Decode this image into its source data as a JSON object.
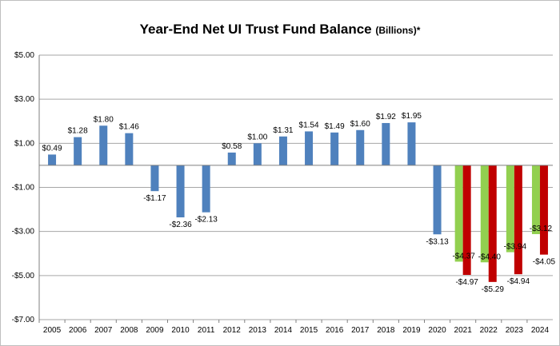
{
  "chart_data": {
    "type": "bar",
    "title": "Year-End Net UI Trust Fund Balance",
    "title_unit": "(Billions)*",
    "xlabel": "",
    "ylabel": "",
    "ylim": [
      -7,
      5
    ],
    "y_ticks": [
      5,
      3,
      1,
      -1,
      -3,
      -5,
      -7
    ],
    "y_tick_labels": [
      "$5.00",
      "$3.00",
      "$1.00",
      "-$1.00",
      "-$3.00",
      "-$5.00",
      "-$7.00"
    ],
    "grid": true,
    "legend": "none",
    "categories": [
      "2005",
      "2006",
      "2007",
      "2008",
      "2009",
      "2010",
      "2011",
      "2012",
      "2013",
      "2014",
      "2015",
      "2016",
      "2017",
      "2018",
      "2019",
      "2020",
      "2021",
      "2022",
      "2023",
      "2024"
    ],
    "series": [
      {
        "color": "#4f81bd",
        "values": [
          0.49,
          1.28,
          1.8,
          1.46,
          -1.17,
          -2.36,
          -2.13,
          0.58,
          1.0,
          1.31,
          1.54,
          1.49,
          1.6,
          1.92,
          1.95,
          -3.13,
          null,
          null,
          null,
          null
        ],
        "labels": [
          "$0.49",
          "$1.28",
          "$1.80",
          "$1.46",
          "-$1.17",
          "-$2.36",
          "-$2.13",
          "$0.58",
          "$1.00",
          "$1.31",
          "$1.54",
          "$1.49",
          "$1.60",
          "$1.92",
          "$1.95",
          "-$3.13",
          "",
          "",
          "",
          ""
        ]
      },
      {
        "color": "#92d050",
        "values": [
          null,
          null,
          null,
          null,
          null,
          null,
          null,
          null,
          null,
          null,
          null,
          null,
          null,
          null,
          null,
          null,
          -4.37,
          -4.4,
          -3.94,
          -3.12
        ],
        "labels": [
          "",
          "",
          "",
          "",
          "",
          "",
          "",
          "",
          "",
          "",
          "",
          "",
          "",
          "",
          "",
          "",
          "-$4.37",
          "-$4.40",
          "-$3.94",
          "-$3.12"
        ]
      },
      {
        "color": "#c00000",
        "values": [
          null,
          null,
          null,
          null,
          null,
          null,
          null,
          null,
          null,
          null,
          null,
          null,
          null,
          null,
          null,
          null,
          -4.97,
          -5.29,
          -4.94,
          -4.05
        ],
        "labels": [
          "",
          "",
          "",
          "",
          "",
          "",
          "",
          "",
          "",
          "",
          "",
          "",
          "",
          "",
          "",
          "",
          "-$4.97",
          "-$5.29",
          "-$4.94",
          "-$4.05"
        ]
      }
    ]
  }
}
